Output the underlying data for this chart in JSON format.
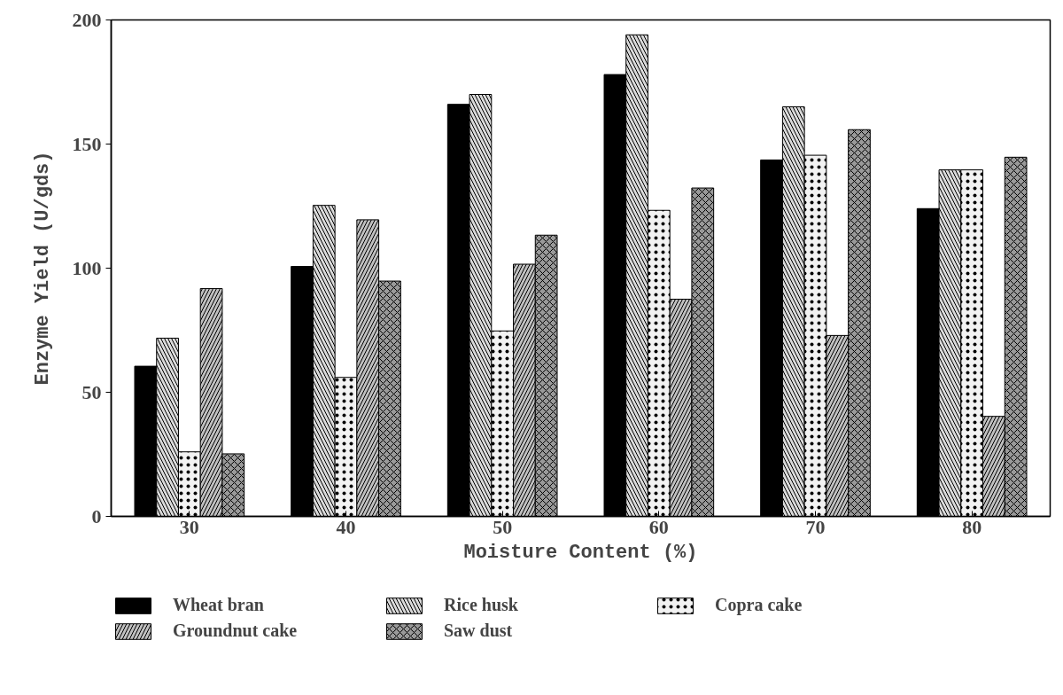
{
  "chart_data": {
    "type": "bar",
    "xlabel": "Moisture Content (%)",
    "ylabel": "Enzyme Yield (U/gds)",
    "categories": [
      "30",
      "40",
      "50",
      "60",
      "70",
      "80"
    ],
    "series": [
      {
        "name": "Wheat bran",
        "color": "#000000",
        "values": [
          60.5,
          100.7,
          166,
          178,
          143.6,
          124
        ]
      },
      {
        "name": "Rice husk",
        "color": "#d9d9d9",
        "values": [
          71.8,
          125.3,
          170,
          194,
          165,
          139.6
        ]
      },
      {
        "name": "Copra cake",
        "color": "#f2f2f2",
        "values": [
          26,
          56,
          74.7,
          123.3,
          145.5,
          139.6
        ]
      },
      {
        "name": "Groundnut cake",
        "color": "#bfbfbf",
        "values": [
          91.8,
          119.5,
          101.6,
          87.5,
          72.9,
          40.3
        ]
      },
      {
        "name": "Saw dust",
        "color": "#999999",
        "values": [
          25.2,
          94.8,
          113.3,
          132.3,
          155.8,
          144.7
        ]
      }
    ],
    "ylim": [
      0,
      200
    ],
    "yticks": [
      0,
      50,
      100,
      150,
      200
    ],
    "grid": false,
    "legend": "bottom"
  }
}
